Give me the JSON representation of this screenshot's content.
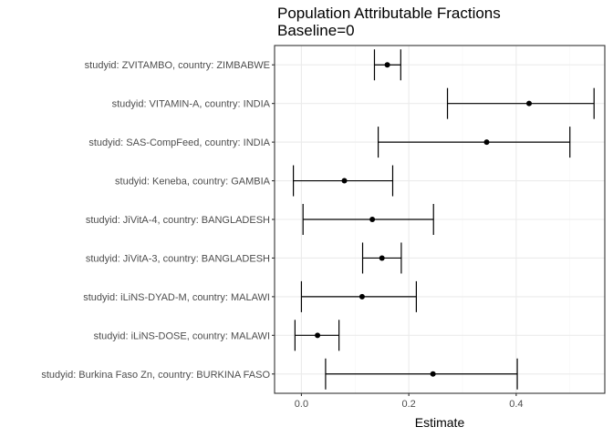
{
  "chart_data": {
    "type": "scatter",
    "title": "Population Attributable Fractions",
    "subtitle": "Baseline=0",
    "xlabel": "Estimate",
    "ylabel": "",
    "xlim": [
      -0.05,
      0.565
    ],
    "xticks": [
      0.0,
      0.2,
      0.4
    ],
    "xtick_labels": [
      "0.0",
      "0.2",
      "0.4"
    ],
    "grid": true,
    "categories": [
      "studyid: ZVITAMBO, country: ZIMBABWE",
      "studyid: VITAMIN-A, country: INDIA",
      "studyid: SAS-CompFeed, country: INDIA",
      "studyid: Keneba, country: GAMBIA",
      "studyid: JiVitA-4, country: BANGLADESH",
      "studyid: JiVitA-3, country: BANGLADESH",
      "studyid: iLiNS-DYAD-M, country: MALAWI",
      "studyid: iLiNS-DOSE, country: MALAWI",
      "studyid: Burkina Faso Zn, country: BURKINA FASO"
    ],
    "estimates": [
      0.16,
      0.424,
      0.345,
      0.08,
      0.132,
      0.15,
      0.113,
      0.03,
      0.245
    ],
    "lower": [
      0.136,
      0.272,
      0.143,
      -0.015,
      0.003,
      0.114,
      0.0,
      -0.012,
      0.045
    ],
    "upper": [
      0.185,
      0.545,
      0.5,
      0.17,
      0.246,
      0.186,
      0.214,
      0.07,
      0.402
    ],
    "colors": {
      "panel_border": "#333333",
      "grid_major": "#ebebeb",
      "grid_minor": "#f5f5f5",
      "mark": "#000000"
    }
  }
}
